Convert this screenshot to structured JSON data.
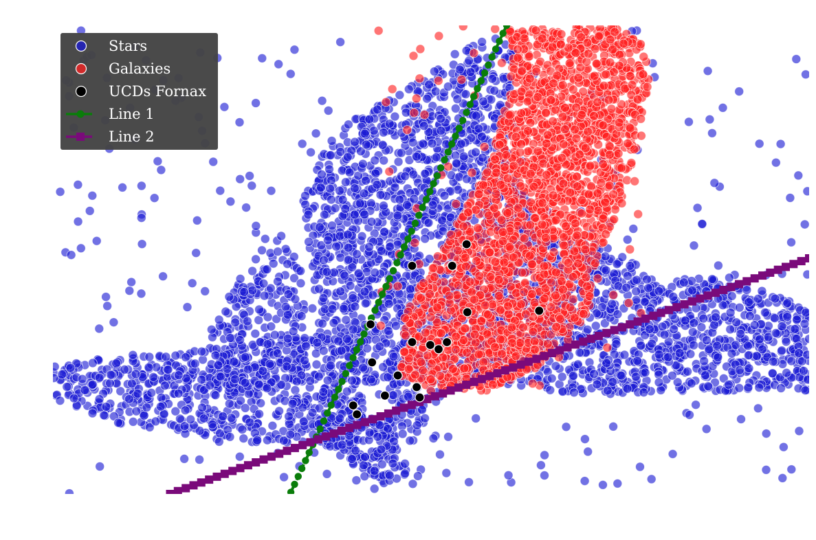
{
  "chart_data": {
    "type": "scatter",
    "title": "",
    "xlabel": "",
    "ylabel": "",
    "xlim": [
      0,
      10
    ],
    "ylim": [
      0,
      10
    ],
    "grid": false,
    "legend_placement": "top-left",
    "series": [
      {
        "name": "Stars",
        "kind": "points",
        "color": "#1a1ad4",
        "density_regions": [
          {
            "polygon": [
              [
                5.9,
                9.8
              ],
              [
                5.3,
                9.4
              ],
              [
                4.7,
                8.7
              ],
              [
                3.9,
                7.9
              ],
              [
                3.5,
                7.1
              ],
              [
                3.3,
                6.2
              ],
              [
                3.4,
                5.2
              ],
              [
                3.4,
                3.2
              ],
              [
                4.0,
                2.5
              ],
              [
                4.5,
                1.9
              ],
              [
                4.1,
                0.6
              ],
              [
                4.7,
                0.9
              ],
              [
                5.2,
                2.3
              ],
              [
                5.8,
                2.4
              ],
              [
                6.6,
                2.2
              ],
              [
                7.4,
                2.1
              ],
              [
                8.3,
                2.2
              ],
              [
                9.2,
                2.2
              ],
              [
                10.0,
                2.2
              ],
              [
                10.0,
                4.0
              ],
              [
                8.8,
                4.6
              ],
              [
                8.0,
                4.6
              ],
              [
                7.3,
                5.3
              ],
              [
                6.4,
                5.8
              ],
              [
                6.0,
                7.4
              ],
              [
                6.1,
                9.4
              ]
            ],
            "count": 2600
          },
          {
            "polygon": [
              [
                0.0,
                1.9
              ],
              [
                1.1,
                1.4
              ],
              [
                2.5,
                1.1
              ],
              [
                4.0,
                1.1
              ],
              [
                4.3,
                2.5
              ],
              [
                4.0,
                3.3
              ],
              [
                3.0,
                3.4
              ],
              [
                1.6,
                3.0
              ],
              [
                0.0,
                2.8
              ]
            ],
            "count": 650
          },
          {
            "polygon": [
              [
                2.1,
                2.4
              ],
              [
                2.8,
                2.2
              ],
              [
                3.4,
                3.0
              ],
              [
                3.3,
                4.8
              ],
              [
                3.0,
                5.6
              ],
              [
                2.4,
                4.6
              ],
              [
                2.1,
                3.4
              ]
            ],
            "count": 220
          },
          {
            "polygon": [
              [
                3.4,
                1.2
              ],
              [
                4.0,
                0.6
              ],
              [
                4.4,
                0.2
              ],
              [
                4.8,
                0.2
              ],
              [
                4.4,
                1.5
              ],
              [
                3.9,
                1.8
              ],
              [
                3.5,
                1.6
              ]
            ],
            "count": 160
          },
          {
            "polygon": [
              [
                0.0,
                0.0
              ],
              [
                10.0,
                0.0
              ],
              [
                10.0,
                10.0
              ],
              [
                0.0,
                10.0
              ]
            ],
            "count": 300
          }
        ]
      },
      {
        "name": "Galaxies",
        "kind": "points",
        "color": "#ff2020",
        "density_regions": [
          {
            "polygon": [
              [
                6.0,
                9.9
              ],
              [
                7.4,
                10.0
              ],
              [
                7.8,
                9.6
              ],
              [
                7.9,
                8.8
              ],
              [
                7.7,
                7.3
              ],
              [
                7.5,
                6.0
              ],
              [
                7.2,
                5.1
              ],
              [
                7.1,
                3.9
              ],
              [
                6.7,
                3.0
              ],
              [
                5.8,
                2.2
              ],
              [
                5.0,
                2.2
              ],
              [
                4.6,
                2.6
              ],
              [
                4.6,
                3.6
              ],
              [
                5.0,
                4.9
              ],
              [
                5.5,
                6.2
              ],
              [
                5.8,
                7.2
              ],
              [
                6.0,
                8.4
              ],
              [
                6.1,
                9.4
              ]
            ],
            "count": 2300
          },
          {
            "polygon": [
              [
                4.3,
                2.3
              ],
              [
                7.8,
                2.3
              ],
              [
                7.8,
                10.0
              ],
              [
                4.3,
                10.0
              ]
            ],
            "count": 120
          }
        ]
      },
      {
        "name": "UCDs Fornax",
        "kind": "points",
        "color": "#000000",
        "points": [
          [
            5.47,
            5.33
          ],
          [
            4.75,
            4.87
          ],
          [
            5.28,
            4.87
          ],
          [
            5.48,
            3.88
          ],
          [
            6.43,
            3.91
          ],
          [
            4.2,
            3.62
          ],
          [
            4.75,
            3.24
          ],
          [
            4.99,
            3.18
          ],
          [
            5.1,
            3.09
          ],
          [
            5.21,
            3.24
          ],
          [
            4.22,
            2.81
          ],
          [
            4.56,
            2.53
          ],
          [
            4.81,
            2.28
          ],
          [
            4.85,
            2.06
          ],
          [
            4.39,
            2.1
          ],
          [
            3.97,
            1.89
          ],
          [
            4.02,
            1.7
          ]
        ]
      },
      {
        "name": "Line 1",
        "kind": "line",
        "color": "#0a7d0a",
        "marker": "circle",
        "linestyle": "dashed",
        "x": [
          3.05,
          6.0
        ],
        "y": [
          -0.3,
          10.0
        ]
      },
      {
        "name": "Line 2",
        "kind": "line",
        "color": "#7a0a7a",
        "marker": "square",
        "linestyle": "dashed",
        "x": [
          1.55,
          10.0
        ],
        "y": [
          0.0,
          5.03
        ]
      }
    ]
  }
}
